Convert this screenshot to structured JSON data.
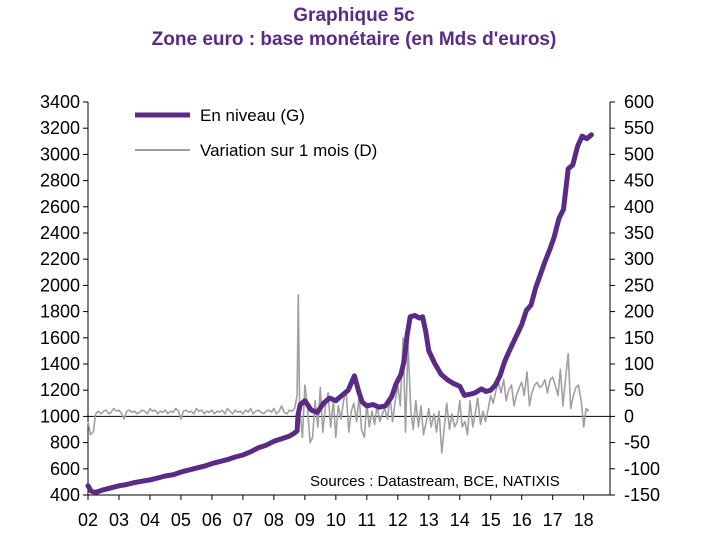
{
  "chart_data": {
    "type": "line",
    "title": "Graphique 5c",
    "subtitle": "Zone euro : base monétaire (en Mds d'euros)",
    "source": "Sources : Datastream, BCE, NATIXIS",
    "x_tick_labels": [
      "02",
      "03",
      "04",
      "05",
      "06",
      "07",
      "08",
      "09",
      "10",
      "11",
      "12",
      "13",
      "14",
      "15",
      "16",
      "17",
      "18"
    ],
    "x_range": [
      2002.0,
      2018.85
    ],
    "y_left": {
      "min": 400,
      "max": 3400,
      "step": 200,
      "ticks": [
        "400",
        "600",
        "800",
        "1000",
        "1200",
        "1400",
        "1600",
        "1800",
        "2000",
        "2200",
        "2400",
        "2600",
        "2800",
        "3000",
        "3200",
        "3400"
      ]
    },
    "y_right": {
      "min": -150,
      "max": 600,
      "step": 50,
      "ticks": [
        "-150",
        "-100",
        "-50",
        "0",
        "50",
        "100",
        "150",
        "200",
        "250",
        "300",
        "350",
        "400",
        "450",
        "500",
        "550",
        "600"
      ]
    },
    "legend_position": "top-left",
    "series": [
      {
        "name": "En niveau (G)",
        "axis": "left",
        "color": "#5b2a86",
        "points": [
          [
            2002.0,
            470
          ],
          [
            2002.1,
            430
          ],
          [
            2002.25,
            420
          ],
          [
            2002.5,
            440
          ],
          [
            2002.75,
            455
          ],
          [
            2003.0,
            470
          ],
          [
            2003.25,
            480
          ],
          [
            2003.5,
            495
          ],
          [
            2003.75,
            505
          ],
          [
            2004.0,
            515
          ],
          [
            2004.25,
            530
          ],
          [
            2004.5,
            545
          ],
          [
            2004.75,
            555
          ],
          [
            2005.0,
            575
          ],
          [
            2005.25,
            590
          ],
          [
            2005.5,
            605
          ],
          [
            2005.75,
            620
          ],
          [
            2006.0,
            640
          ],
          [
            2006.25,
            655
          ],
          [
            2006.5,
            670
          ],
          [
            2006.75,
            690
          ],
          [
            2007.0,
            705
          ],
          [
            2007.25,
            730
          ],
          [
            2007.5,
            760
          ],
          [
            2007.75,
            780
          ],
          [
            2008.0,
            810
          ],
          [
            2008.25,
            830
          ],
          [
            2008.5,
            850
          ],
          [
            2008.65,
            870
          ],
          [
            2008.75,
            890
          ],
          [
            2008.78,
            1010
          ],
          [
            2008.85,
            1090
          ],
          [
            2009.0,
            1120
          ],
          [
            2009.2,
            1050
          ],
          [
            2009.4,
            1030
          ],
          [
            2009.6,
            1100
          ],
          [
            2009.8,
            1140
          ],
          [
            2010.0,
            1120
          ],
          [
            2010.2,
            1160
          ],
          [
            2010.4,
            1200
          ],
          [
            2010.6,
            1310
          ],
          [
            2010.75,
            1180
          ],
          [
            2010.85,
            1110
          ],
          [
            2011.0,
            1080
          ],
          [
            2011.2,
            1090
          ],
          [
            2011.4,
            1070
          ],
          [
            2011.6,
            1080
          ],
          [
            2011.8,
            1150
          ],
          [
            2011.95,
            1250
          ],
          [
            2012.1,
            1320
          ],
          [
            2012.2,
            1420
          ],
          [
            2012.3,
            1620
          ],
          [
            2012.4,
            1760
          ],
          [
            2012.55,
            1770
          ],
          [
            2012.7,
            1750
          ],
          [
            2012.8,
            1760
          ],
          [
            2012.9,
            1650
          ],
          [
            2013.0,
            1500
          ],
          [
            2013.2,
            1400
          ],
          [
            2013.4,
            1320
          ],
          [
            2013.6,
            1280
          ],
          [
            2013.8,
            1250
          ],
          [
            2014.0,
            1230
          ],
          [
            2014.15,
            1160
          ],
          [
            2014.35,
            1170
          ],
          [
            2014.5,
            1180
          ],
          [
            2014.7,
            1210
          ],
          [
            2014.85,
            1190
          ],
          [
            2015.0,
            1200
          ],
          [
            2015.15,
            1240
          ],
          [
            2015.3,
            1310
          ],
          [
            2015.45,
            1420
          ],
          [
            2015.6,
            1500
          ],
          [
            2015.8,
            1600
          ],
          [
            2016.0,
            1700
          ],
          [
            2016.15,
            1810
          ],
          [
            2016.3,
            1850
          ],
          [
            2016.45,
            1980
          ],
          [
            2016.6,
            2080
          ],
          [
            2016.75,
            2180
          ],
          [
            2016.9,
            2270
          ],
          [
            2017.05,
            2370
          ],
          [
            2017.2,
            2510
          ],
          [
            2017.35,
            2580
          ],
          [
            2017.5,
            2890
          ],
          [
            2017.65,
            2920
          ],
          [
            2017.8,
            3060
          ],
          [
            2017.95,
            3140
          ],
          [
            2018.1,
            3120
          ],
          [
            2018.25,
            3150
          ]
        ]
      },
      {
        "name": "Variation sur 1 mois (D)",
        "axis": "right",
        "color": "#a0a0a0",
        "points": [
          [
            2002.0,
            -10
          ],
          [
            2002.08,
            -35
          ],
          [
            2002.17,
            -30
          ],
          [
            2002.25,
            5
          ],
          [
            2002.33,
            10
          ],
          [
            2002.42,
            5
          ],
          [
            2002.5,
            10
          ],
          [
            2002.58,
            12
          ],
          [
            2002.67,
            5
          ],
          [
            2002.75,
            8
          ],
          [
            2002.83,
            15
          ],
          [
            2002.92,
            10
          ],
          [
            2003.0,
            12
          ],
          [
            2003.08,
            5
          ],
          [
            2003.17,
            -5
          ],
          [
            2003.25,
            10
          ],
          [
            2003.33,
            12
          ],
          [
            2003.42,
            8
          ],
          [
            2003.5,
            10
          ],
          [
            2003.58,
            5
          ],
          [
            2003.67,
            8
          ],
          [
            2003.75,
            12
          ],
          [
            2003.83,
            10
          ],
          [
            2003.92,
            5
          ],
          [
            2004.0,
            15
          ],
          [
            2004.08,
            10
          ],
          [
            2004.17,
            12
          ],
          [
            2004.25,
            5
          ],
          [
            2004.33,
            10
          ],
          [
            2004.42,
            8
          ],
          [
            2004.5,
            12
          ],
          [
            2004.58,
            5
          ],
          [
            2004.67,
            10
          ],
          [
            2004.75,
            8
          ],
          [
            2004.83,
            15
          ],
          [
            2004.92,
            10
          ],
          [
            2005.0,
            -5
          ],
          [
            2005.08,
            10
          ],
          [
            2005.17,
            12
          ],
          [
            2005.25,
            8
          ],
          [
            2005.33,
            10
          ],
          [
            2005.42,
            5
          ],
          [
            2005.5,
            15
          ],
          [
            2005.58,
            10
          ],
          [
            2005.67,
            12
          ],
          [
            2005.75,
            5
          ],
          [
            2005.83,
            10
          ],
          [
            2005.92,
            8
          ],
          [
            2006.0,
            12
          ],
          [
            2006.08,
            5
          ],
          [
            2006.17,
            10
          ],
          [
            2006.25,
            8
          ],
          [
            2006.33,
            12
          ],
          [
            2006.42,
            5
          ],
          [
            2006.5,
            15
          ],
          [
            2006.58,
            10
          ],
          [
            2006.67,
            5
          ],
          [
            2006.75,
            12
          ],
          [
            2006.83,
            8
          ],
          [
            2006.92,
            10
          ],
          [
            2007.0,
            5
          ],
          [
            2007.08,
            12
          ],
          [
            2007.17,
            8
          ],
          [
            2007.25,
            15
          ],
          [
            2007.33,
            5
          ],
          [
            2007.42,
            10
          ],
          [
            2007.5,
            12
          ],
          [
            2007.58,
            8
          ],
          [
            2007.67,
            5
          ],
          [
            2007.75,
            10
          ],
          [
            2007.83,
            12
          ],
          [
            2007.92,
            8
          ],
          [
            2008.0,
            15
          ],
          [
            2008.08,
            5
          ],
          [
            2008.17,
            10
          ],
          [
            2008.25,
            20
          ],
          [
            2008.33,
            8
          ],
          [
            2008.42,
            5
          ],
          [
            2008.5,
            12
          ],
          [
            2008.58,
            10
          ],
          [
            2008.67,
            15
          ],
          [
            2008.75,
            40
          ],
          [
            2008.79,
            232
          ],
          [
            2008.83,
            20
          ],
          [
            2008.92,
            -40
          ],
          [
            2009.0,
            60
          ],
          [
            2009.08,
            20
          ],
          [
            2009.17,
            -50
          ],
          [
            2009.25,
            -40
          ],
          [
            2009.33,
            30
          ],
          [
            2009.42,
            -20
          ],
          [
            2009.5,
            55
          ],
          [
            2009.58,
            -30
          ],
          [
            2009.67,
            20
          ],
          [
            2009.75,
            45
          ],
          [
            2009.83,
            -20
          ],
          [
            2009.92,
            30
          ],
          [
            2010.0,
            -40
          ],
          [
            2010.08,
            20
          ],
          [
            2010.17,
            -5
          ],
          [
            2010.25,
            30
          ],
          [
            2010.33,
            50
          ],
          [
            2010.42,
            -30
          ],
          [
            2010.5,
            10
          ],
          [
            2010.58,
            25
          ],
          [
            2010.67,
            -10
          ],
          [
            2010.75,
            40
          ],
          [
            2010.83,
            -25
          ],
          [
            2010.92,
            -40
          ],
          [
            2011.0,
            25
          ],
          [
            2011.08,
            -20
          ],
          [
            2011.17,
            10
          ],
          [
            2011.25,
            -15
          ],
          [
            2011.33,
            20
          ],
          [
            2011.42,
            -10
          ],
          [
            2011.5,
            5
          ],
          [
            2011.58,
            15
          ],
          [
            2011.67,
            -5
          ],
          [
            2011.75,
            40
          ],
          [
            2011.83,
            -10
          ],
          [
            2011.92,
            30
          ],
          [
            2012.0,
            60
          ],
          [
            2012.08,
            20
          ],
          [
            2012.17,
            150
          ],
          [
            2012.25,
            -30
          ],
          [
            2012.33,
            140
          ],
          [
            2012.42,
            10
          ],
          [
            2012.5,
            -25
          ],
          [
            2012.58,
            30
          ],
          [
            2012.67,
            -20
          ],
          [
            2012.75,
            20
          ],
          [
            2012.83,
            -35
          ],
          [
            2012.92,
            -10
          ],
          [
            2013.0,
            15
          ],
          [
            2013.08,
            -20
          ],
          [
            2013.17,
            5
          ],
          [
            2013.25,
            -30
          ],
          [
            2013.33,
            10
          ],
          [
            2013.42,
            -70
          ],
          [
            2013.5,
            -20
          ],
          [
            2013.58,
            25
          ],
          [
            2013.67,
            -25
          ],
          [
            2013.75,
            5
          ],
          [
            2013.83,
            -20
          ],
          [
            2013.92,
            -10
          ],
          [
            2014.0,
            30
          ],
          [
            2014.08,
            -20
          ],
          [
            2014.17,
            -10
          ],
          [
            2014.25,
            -35
          ],
          [
            2014.33,
            30
          ],
          [
            2014.42,
            -20
          ],
          [
            2014.5,
            5
          ],
          [
            2014.58,
            35
          ],
          [
            2014.67,
            -15
          ],
          [
            2014.75,
            10
          ],
          [
            2014.83,
            -10
          ],
          [
            2014.92,
            15
          ],
          [
            2015.0,
            40
          ],
          [
            2015.08,
            25
          ],
          [
            2015.17,
            50
          ],
          [
            2015.25,
            65
          ],
          [
            2015.33,
            45
          ],
          [
            2015.42,
            70
          ],
          [
            2015.5,
            30
          ],
          [
            2015.58,
            50
          ],
          [
            2015.67,
            60
          ],
          [
            2015.75,
            20
          ],
          [
            2015.83,
            40
          ],
          [
            2015.92,
            55
          ],
          [
            2016.0,
            65
          ],
          [
            2016.08,
            40
          ],
          [
            2016.17,
            85
          ],
          [
            2016.25,
            20
          ],
          [
            2016.33,
            45
          ],
          [
            2016.42,
            60
          ],
          [
            2016.5,
            65
          ],
          [
            2016.58,
            55
          ],
          [
            2016.67,
            60
          ],
          [
            2016.75,
            70
          ],
          [
            2016.83,
            45
          ],
          [
            2016.92,
            70
          ],
          [
            2017.0,
            75
          ],
          [
            2017.08,
            60
          ],
          [
            2017.17,
            40
          ],
          [
            2017.25,
            90
          ],
          [
            2017.33,
            20
          ],
          [
            2017.42,
            75
          ],
          [
            2017.5,
            120
          ],
          [
            2017.58,
            15
          ],
          [
            2017.67,
            40
          ],
          [
            2017.75,
            55
          ],
          [
            2017.83,
            60
          ],
          [
            2017.92,
            30
          ],
          [
            2018.0,
            -20
          ],
          [
            2018.08,
            15
          ],
          [
            2018.17,
            10
          ]
        ]
      }
    ]
  }
}
